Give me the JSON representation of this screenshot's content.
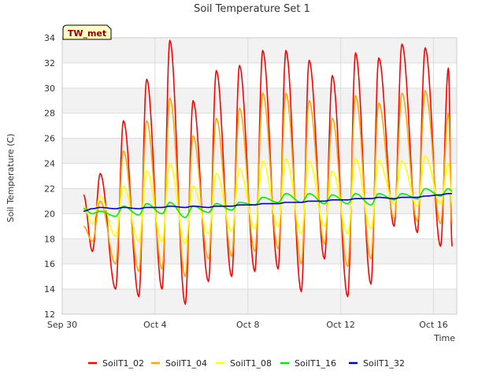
{
  "chart_data": {
    "type": "line",
    "title": "Soil Temperature Set 1",
    "xlabel": "Time",
    "ylabel": "Soil Temperature (C)",
    "site_label": "TW_met",
    "xlim": [
      "2023-09-30",
      "2023-10-17"
    ],
    "ylim": [
      12,
      34
    ],
    "x_ticks": [
      {
        "date": "2023-09-30",
        "label": "Sep 30"
      },
      {
        "date": "2023-10-04",
        "label": "Oct 4"
      },
      {
        "date": "2023-10-08",
        "label": "Oct 8"
      },
      {
        "date": "2023-10-12",
        "label": "Oct 12"
      },
      {
        "date": "2023-10-16",
        "label": "Oct 16"
      }
    ],
    "y_ticks": [
      12,
      14,
      16,
      18,
      20,
      22,
      24,
      26,
      28,
      30,
      32,
      34
    ],
    "grid": true,
    "shaded_bands": true,
    "legend_position": "bottom",
    "daily": {
      "dates": [
        "2023-10-01",
        "2023-10-02",
        "2023-10-03",
        "2023-10-04",
        "2023-10-05",
        "2023-10-06",
        "2023-10-07",
        "2023-10-08",
        "2023-10-09",
        "2023-10-10",
        "2023-10-11",
        "2023-10-12",
        "2023-10-13",
        "2023-10-14",
        "2023-10-15",
        "2023-10-16"
      ]
    },
    "series": [
      {
        "name": "SoilT1_02",
        "color": "#ff0000",
        "start": 21.5,
        "max": [
          23.2,
          27.4,
          30.7,
          33.8,
          29.0,
          31.4,
          31.8,
          33.0,
          33.0,
          32.2,
          31.0,
          32.8,
          32.4,
          33.5,
          33.2,
          31.6
        ],
        "min": [
          17.0,
          14.0,
          13.4,
          14.0,
          12.8,
          14.6,
          15.0,
          15.4,
          15.6,
          13.8,
          16.4,
          13.4,
          14.4,
          19.0,
          18.5,
          17.4
        ],
        "end": 17.4
      },
      {
        "name": "SoilT1_04",
        "color": "#ffa500",
        "start": 19.0,
        "max": [
          21.0,
          25.0,
          27.4,
          29.2,
          26.2,
          27.6,
          28.4,
          29.6,
          29.6,
          29.0,
          27.6,
          29.4,
          28.8,
          29.6,
          29.8,
          28.0
        ],
        "min": [
          17.8,
          16.0,
          15.4,
          15.6,
          15.0,
          16.4,
          16.6,
          17.0,
          17.2,
          16.0,
          17.6,
          15.8,
          16.4,
          19.6,
          19.4,
          19.2
        ],
        "end": 19.2
      },
      {
        "name": "SoilT1_08",
        "color": "#ffff00",
        "start": 20.6,
        "max": [
          21.4,
          22.2,
          23.4,
          24.0,
          22.2,
          23.2,
          23.6,
          24.2,
          24.4,
          24.2,
          23.4,
          24.4,
          24.2,
          24.2,
          24.6,
          24.0
        ],
        "min": [
          19.2,
          18.2,
          17.8,
          17.8,
          17.6,
          18.4,
          18.6,
          18.8,
          19.0,
          18.4,
          19.0,
          18.4,
          18.8,
          20.8,
          20.6,
          20.8
        ],
        "end": 20.8
      },
      {
        "name": "SoilT1_16",
        "color": "#00ee00",
        "start": 20.4,
        "max": [
          20.2,
          20.6,
          20.8,
          20.9,
          20.6,
          20.8,
          20.9,
          21.3,
          21.6,
          21.6,
          21.5,
          21.6,
          21.6,
          21.6,
          22.0,
          22.0
        ],
        "min": [
          20.0,
          19.8,
          19.9,
          20.0,
          19.7,
          20.1,
          20.3,
          20.7,
          20.9,
          20.9,
          20.8,
          20.8,
          20.7,
          21.1,
          21.2,
          21.4
        ],
        "end": 21.8
      },
      {
        "name": "SoilT1_32",
        "color": "#0000cd",
        "start": 20.2,
        "max": [
          20.5,
          20.5,
          20.5,
          20.6,
          20.6,
          20.6,
          20.7,
          20.8,
          20.9,
          21.0,
          21.1,
          21.2,
          21.3,
          21.3,
          21.4,
          21.6
        ],
        "min": [
          20.4,
          20.4,
          20.4,
          20.5,
          20.5,
          20.5,
          20.6,
          20.7,
          20.8,
          20.9,
          21.0,
          21.1,
          21.2,
          21.2,
          21.3,
          21.5
        ],
        "end": 21.6
      }
    ]
  }
}
